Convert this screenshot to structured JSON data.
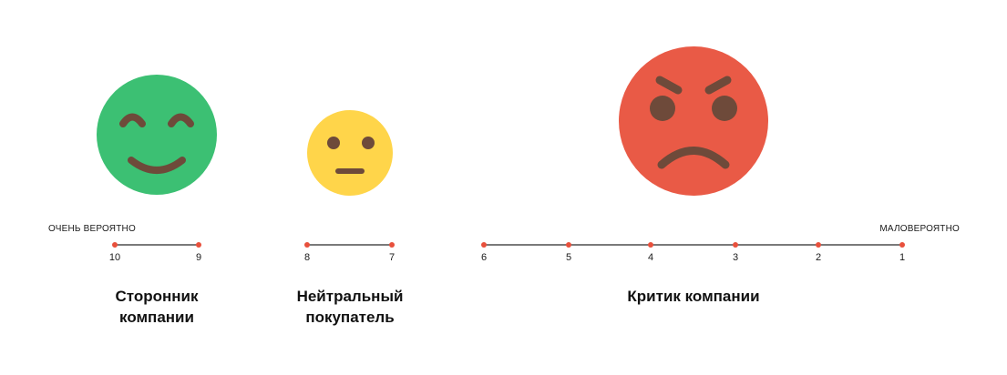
{
  "colors": {
    "promoter": "#3CC073",
    "passive": "#FFD54A",
    "detractor": "#E95A46",
    "face_features": "#6E4A3A",
    "line": "#2a2a2a",
    "dot": "#E8503C"
  },
  "scale": {
    "left_caption": "ОЧЕНЬ ВЕРОЯТНО",
    "right_caption": "МАЛОВЕРОЯТНО"
  },
  "groups": [
    {
      "id": "promoter",
      "title_line1": "Сторонник",
      "title_line2": "компании",
      "icon": "smiling-face-icon",
      "ticks": [
        "10",
        "9"
      ]
    },
    {
      "id": "passive",
      "title_line1": "Нейтральный",
      "title_line2": "покупатель",
      "icon": "neutral-face-icon",
      "ticks": [
        "8",
        "7"
      ]
    },
    {
      "id": "detractor",
      "title_line1": "Критик компании",
      "title_line2": "",
      "icon": "angry-face-icon",
      "ticks": [
        "6",
        "5",
        "4",
        "3",
        "2",
        "1"
      ]
    }
  ]
}
